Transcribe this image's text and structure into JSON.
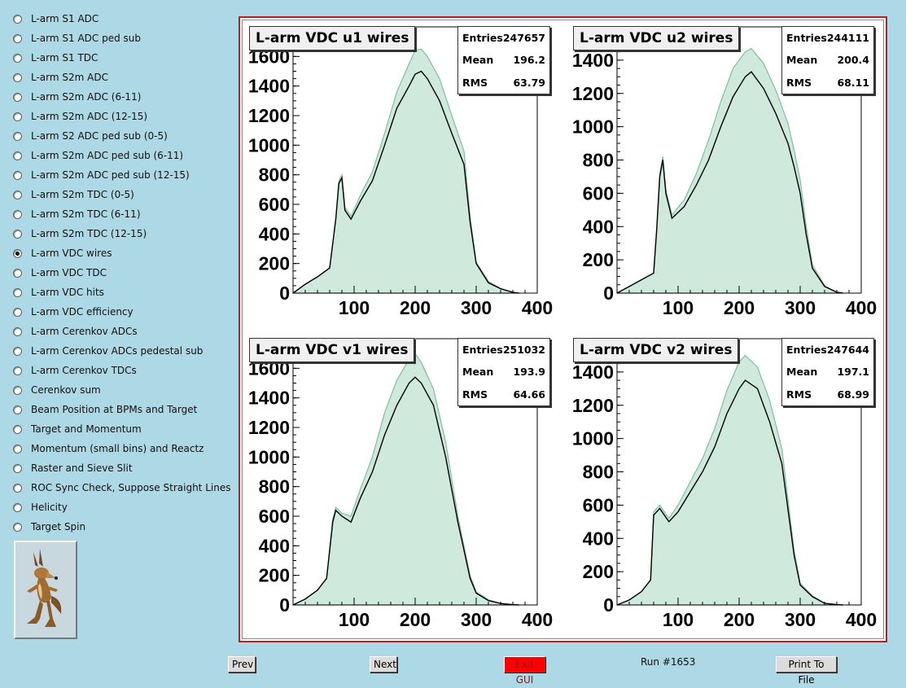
{
  "menu": {
    "items": [
      {
        "label": "L-arm S1 ADC",
        "selected": false
      },
      {
        "label": "L-arm S1 ADC ped sub",
        "selected": false
      },
      {
        "label": "L-arm S1 TDC",
        "selected": false
      },
      {
        "label": "L-arm S2m ADC",
        "selected": false
      },
      {
        "label": "L-arm S2m ADC (6-11)",
        "selected": false
      },
      {
        "label": "L-arm S2m ADC (12-15)",
        "selected": false
      },
      {
        "label": "L-arm S2 ADC ped sub (0-5)",
        "selected": false
      },
      {
        "label": "L-arm S2m ADC ped sub (6-11)",
        "selected": false
      },
      {
        "label": "L-arm S2m ADC ped sub (12-15)",
        "selected": false
      },
      {
        "label": "L-arm S2m TDC (0-5)",
        "selected": false
      },
      {
        "label": "L-arm S2m TDC (6-11)",
        "selected": false
      },
      {
        "label": "L-arm S2m TDC (12-15)",
        "selected": false
      },
      {
        "label": "L-arm VDC wires",
        "selected": true
      },
      {
        "label": "L-arm VDC TDC",
        "selected": false
      },
      {
        "label": "L-arm VDC hits",
        "selected": false
      },
      {
        "label": "L-arm VDC efficiency",
        "selected": false
      },
      {
        "label": "L-arm Cerenkov ADCs",
        "selected": false
      },
      {
        "label": "L-arm Cerenkov ADCs pedestal sub",
        "selected": false
      },
      {
        "label": "L-arm Cerenkov TDCs",
        "selected": false
      },
      {
        "label": "Cerenkov sum",
        "selected": false
      },
      {
        "label": "Beam Position at BPMs and Target",
        "selected": false
      },
      {
        "label": "Target and Momentum",
        "selected": false
      },
      {
        "label": "Momentum (small bins) and Reactz",
        "selected": false
      },
      {
        "label": "Raster and Sieve Slit",
        "selected": false
      },
      {
        "label": "ROC Sync Check, Suppose Straight Lines",
        "selected": false
      },
      {
        "label": "Helicity",
        "selected": false
      },
      {
        "label": "Target Spin",
        "selected": false
      }
    ],
    "logo_icon": "coyote-logo-icon"
  },
  "colors": {
    "background": "#add8e6",
    "canvas_border": "#b22222",
    "hist_fill": "#7fbfa0",
    "hist_line": "#000000",
    "exit_button": "#ff0000"
  },
  "footer": {
    "prev": "Prev",
    "next": "Next",
    "exit": "Exit GUI",
    "run": "Run #1653",
    "print": "Print To File"
  },
  "stats_labels": {
    "entries": "Entries",
    "mean": "Mean",
    "rms": "RMS"
  },
  "chart_data": [
    {
      "type": "histogram",
      "title": "L-arm VDC u1 wires",
      "stats": {
        "entries": "247657",
        "mean": "196.2",
        "rms": "63.79"
      },
      "xlim": [
        0,
        400
      ],
      "ylim": [
        0,
        1800
      ],
      "xticks": [
        100,
        200,
        300,
        400
      ],
      "yticks": [
        0,
        200,
        400,
        600,
        800,
        1000,
        1200,
        1400,
        1600
      ],
      "x": [
        0,
        20,
        40,
        60,
        70,
        75,
        80,
        85,
        95,
        110,
        130,
        150,
        170,
        190,
        200,
        210,
        220,
        240,
        260,
        280,
        290,
        300,
        320,
        340,
        360,
        370
      ],
      "series": [
        {
          "values": [
            0,
            60,
            110,
            170,
            500,
            740,
            780,
            560,
            500,
            620,
            760,
            1000,
            1250,
            1400,
            1480,
            1500,
            1450,
            1300,
            1080,
            870,
            480,
            200,
            70,
            30,
            5,
            0
          ]
        },
        {
          "values": [
            0,
            60,
            110,
            170,
            500,
            760,
            800,
            580,
            520,
            660,
            820,
            1080,
            1360,
            1550,
            1640,
            1650,
            1600,
            1450,
            1200,
            960,
            520,
            210,
            80,
            30,
            5,
            0
          ]
        }
      ]
    },
    {
      "type": "histogram",
      "title": "L-arm VDC u2 wires",
      "stats": {
        "entries": "244111",
        "mean": "200.4",
        "rms": "68.11"
      },
      "xlim": [
        0,
        400
      ],
      "ylim": [
        0,
        1600
      ],
      "xticks": [
        100,
        200,
        300,
        400
      ],
      "yticks": [
        0,
        200,
        400,
        600,
        800,
        1000,
        1200,
        1400
      ],
      "x": [
        0,
        20,
        40,
        60,
        65,
        70,
        75,
        80,
        90,
        110,
        130,
        150,
        170,
        190,
        210,
        220,
        240,
        260,
        280,
        290,
        300,
        310,
        320,
        340,
        360,
        370
      ],
      "series": [
        {
          "values": [
            0,
            40,
            80,
            120,
            380,
            700,
            800,
            600,
            450,
            520,
            650,
            800,
            1000,
            1180,
            1300,
            1330,
            1230,
            1080,
            900,
            760,
            600,
            350,
            150,
            40,
            5,
            0
          ]
        },
        {
          "values": [
            0,
            40,
            80,
            120,
            400,
            720,
            820,
            620,
            470,
            560,
            720,
            920,
            1150,
            1350,
            1450,
            1470,
            1380,
            1220,
            1020,
            860,
            680,
            400,
            170,
            45,
            5,
            0
          ]
        }
      ]
    },
    {
      "type": "histogram",
      "title": "L-arm VDC v1 wires",
      "stats": {
        "entries": "251032",
        "mean": "193.9",
        "rms": "64.66"
      },
      "xlim": [
        0,
        400
      ],
      "ylim": [
        0,
        1800
      ],
      "xticks": [
        100,
        200,
        300,
        400
      ],
      "yticks": [
        0,
        200,
        400,
        600,
        800,
        1000,
        1200,
        1400,
        1600
      ],
      "x": [
        0,
        20,
        40,
        55,
        65,
        70,
        80,
        95,
        110,
        130,
        150,
        170,
        190,
        200,
        210,
        230,
        250,
        270,
        290,
        300,
        320,
        340,
        360,
        370
      ],
      "series": [
        {
          "values": [
            0,
            40,
            100,
            180,
            560,
            640,
            600,
            560,
            720,
            900,
            1150,
            1350,
            1500,
            1540,
            1500,
            1350,
            1000,
            560,
            180,
            80,
            30,
            10,
            2,
            0
          ]
        },
        {
          "values": [
            0,
            40,
            100,
            180,
            580,
            660,
            620,
            600,
            780,
            1000,
            1300,
            1520,
            1660,
            1700,
            1640,
            1460,
            1100,
            600,
            200,
            90,
            35,
            10,
            2,
            0
          ]
        }
      ]
    },
    {
      "type": "histogram",
      "title": "L-arm VDC v2 wires",
      "stats": {
        "entries": "247644",
        "mean": "197.1",
        "rms": "68.99"
      },
      "xlim": [
        0,
        400
      ],
      "ylim": [
        0,
        1600
      ],
      "xticks": [
        100,
        200,
        300,
        400
      ],
      "yticks": [
        0,
        200,
        400,
        600,
        800,
        1000,
        1200,
        1400
      ],
      "x": [
        0,
        20,
        40,
        55,
        60,
        70,
        85,
        100,
        120,
        140,
        160,
        180,
        200,
        210,
        230,
        250,
        270,
        290,
        300,
        320,
        340,
        360,
        370
      ],
      "series": [
        {
          "values": [
            0,
            30,
            80,
            150,
            540,
            580,
            500,
            560,
            680,
            800,
            950,
            1150,
            1300,
            1350,
            1300,
            1100,
            850,
            300,
            120,
            50,
            10,
            2,
            0
          ]
        },
        {
          "values": [
            0,
            30,
            80,
            150,
            560,
            600,
            520,
            600,
            740,
            880,
            1060,
            1290,
            1460,
            1500,
            1430,
            1230,
            940,
            330,
            130,
            55,
            10,
            2,
            0
          ]
        }
      ]
    }
  ]
}
